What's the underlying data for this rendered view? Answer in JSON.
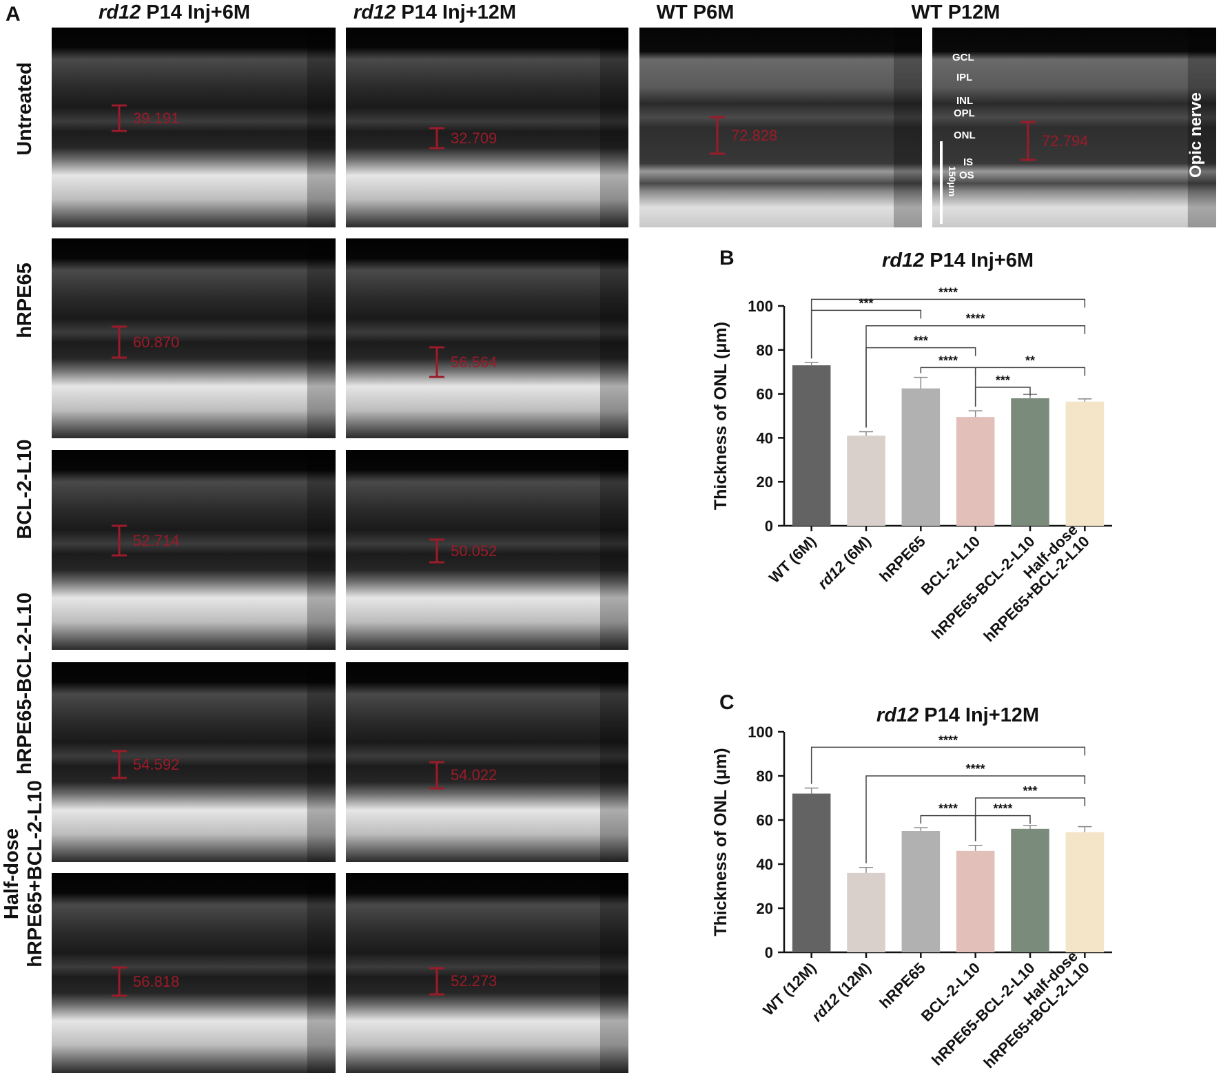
{
  "panel_a": {
    "letter": "A",
    "columns": [
      {
        "italic": "rd12",
        "rest": " P14 Inj+6M"
      },
      {
        "italic": "rd12",
        "rest": " P14 Inj+12M"
      },
      {
        "italic": "",
        "rest": "WT P6M"
      },
      {
        "italic": "",
        "rest": "WT P12M"
      }
    ],
    "rows": [
      {
        "label_lines": [
          "Untreated"
        ]
      },
      {
        "label_lines": [
          "hRPE65"
        ]
      },
      {
        "label_lines": [
          "BCL-2-L10"
        ]
      },
      {
        "label_lines": [
          "hRPE65-BCL-2-L10"
        ]
      },
      {
        "label_lines": [
          "Half-dose",
          "hRPE65+BCL-2-L10"
        ]
      }
    ],
    "measurements": {
      "r0c0": "39.191",
      "r0c1": "32.709",
      "r0c2": "72.828",
      "r0c3": "72.794",
      "r1c0": "60.870",
      "r1c1": "56.564",
      "r2c0": "52.714",
      "r2c1": "50.052",
      "r3c0": "54.592",
      "r3c1": "54.022",
      "r4c0": "56.818",
      "r4c1": "52.273"
    },
    "layer_labels": [
      "GCL",
      "IPL",
      "INL",
      "OPL",
      "ONL",
      "IS",
      "OS"
    ],
    "optic_nerve_label": "Opic nerve",
    "scale_bar_label": "150μm",
    "measure_color": "#9b1b2a"
  },
  "chart_data": [
    {
      "type": "bar",
      "panel_letter": "B",
      "title_italic": "rd12",
      "title_rest": " P14 Inj+6M",
      "ylabel": "Thickness of ONL (μm)",
      "ylim": [
        0,
        100
      ],
      "yticks": [
        0,
        20,
        40,
        60,
        80,
        100
      ],
      "categories": [
        {
          "italic": "",
          "lines": [
            "WT (6M)"
          ]
        },
        {
          "italic": "rd12",
          "lines": [
            " (6M)"
          ]
        },
        {
          "italic": "",
          "lines": [
            "hRPE65"
          ]
        },
        {
          "italic": "",
          "lines": [
            "BCL-2-L10"
          ]
        },
        {
          "italic": "",
          "lines": [
            "hRPE65-BCL-2-L10"
          ]
        },
        {
          "italic": "",
          "lines": [
            "Half-dose",
            "hRPE65+BCL-2-L10"
          ]
        }
      ],
      "values": [
        73,
        41,
        62.5,
        49.5,
        58,
        56.5
      ],
      "errors": [
        1.2,
        1.8,
        5,
        2.8,
        1.8,
        1.2
      ],
      "colors": [
        "#636363",
        "#d9d0cb",
        "#b1b1b1",
        "#e2bfb8",
        "#7b8b7b",
        "#f5e5c8"
      ],
      "significance": [
        {
          "from": 0,
          "to": 5,
          "label": "****",
          "y": 103
        },
        {
          "from": 0,
          "to": 2,
          "label": "***",
          "y": 98
        },
        {
          "from": 1,
          "to": 5,
          "label": "****",
          "y": 91
        },
        {
          "from": 1,
          "to": 3,
          "label": "***",
          "y": 81
        },
        {
          "from": 2,
          "to": 3,
          "label": "****",
          "y": 72
        },
        {
          "from": 3,
          "to": 5,
          "label": "**",
          "y": 72
        },
        {
          "from": 3,
          "to": 4,
          "label": "***",
          "y": 63
        }
      ]
    },
    {
      "type": "bar",
      "panel_letter": "C",
      "title_italic": "rd12",
      "title_rest": " P14 Inj+12M",
      "ylabel": "Thickness of ONL (μm)",
      "ylim": [
        0,
        100
      ],
      "yticks": [
        0,
        20,
        40,
        60,
        80,
        100
      ],
      "categories": [
        {
          "italic": "",
          "lines": [
            "WT (12M)"
          ]
        },
        {
          "italic": "rd12",
          "lines": [
            " (12M)"
          ]
        },
        {
          "italic": "",
          "lines": [
            "hRPE65"
          ]
        },
        {
          "italic": "",
          "lines": [
            "BCL-2-L10"
          ]
        },
        {
          "italic": "",
          "lines": [
            "hRPE65-BCL-2-L10"
          ]
        },
        {
          "italic": "",
          "lines": [
            "Half-dose",
            "hRPE65+BCL-2-L10"
          ]
        }
      ],
      "values": [
        72,
        36,
        55,
        46,
        56,
        54.5
      ],
      "errors": [
        2.5,
        2.5,
        1.5,
        2.5,
        1.5,
        2.5
      ],
      "colors": [
        "#636363",
        "#d9d0cb",
        "#b1b1b1",
        "#e2bfb8",
        "#7b8b7b",
        "#f5e5c8"
      ],
      "significance": [
        {
          "from": 0,
          "to": 5,
          "label": "****",
          "y": 93
        },
        {
          "from": 1,
          "to": 5,
          "label": "****",
          "y": 80
        },
        {
          "from": 3,
          "to": 5,
          "label": "***",
          "y": 70
        },
        {
          "from": 2,
          "to": 3,
          "label": "****",
          "y": 62
        },
        {
          "from": 3,
          "to": 4,
          "label": "****",
          "y": 62
        }
      ]
    }
  ]
}
